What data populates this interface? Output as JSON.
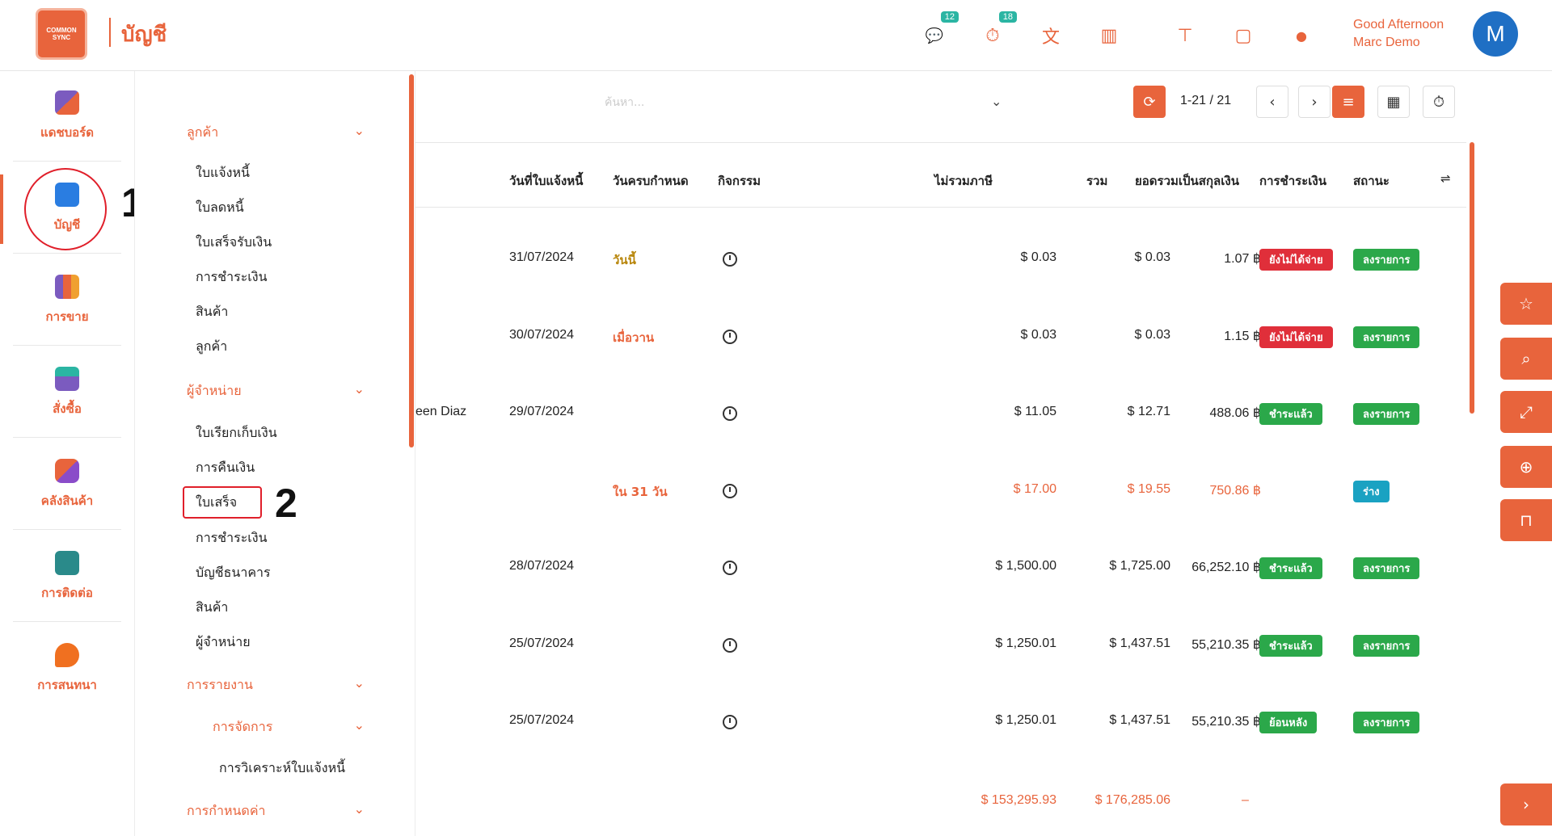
{
  "app": {
    "logo_text": "COMMON SYNC",
    "title": "บัญชี",
    "greeting": "Good Afternoon",
    "user_name": "Marc Demo",
    "avatar_letter": "M"
  },
  "topbar": {
    "icons": [
      {
        "name": "chat-icon",
        "glyph": "💬",
        "badge": "12"
      },
      {
        "name": "timer-icon",
        "glyph": "⏱",
        "badge": "18"
      },
      {
        "name": "translate-icon",
        "glyph": "文"
      },
      {
        "name": "building-icon",
        "glyph": "▥"
      },
      {
        "name": "signpost-icon",
        "glyph": "⊤"
      },
      {
        "name": "note-icon",
        "glyph": "▢"
      },
      {
        "name": "lightbulb-icon",
        "glyph": "●"
      }
    ]
  },
  "leftnav": {
    "items": [
      {
        "label": "แดชบอร์ด",
        "color": "#7b5bbf"
      },
      {
        "label": "บัญชี",
        "color": "#2a7de1"
      },
      {
        "label": "การขาย",
        "color": "#e8643c"
      },
      {
        "label": "สั่งซื้อ",
        "color": "#2bb5a3"
      },
      {
        "label": "คลังสินค้า",
        "color": "#8a4cc9"
      },
      {
        "label": "การติดต่อ",
        "color": "#2a8a8a"
      },
      {
        "label": "การสนทนา",
        "color": "#f07020"
      }
    ],
    "step1": "1"
  },
  "submenu": {
    "sections": [
      {
        "label": "ลูกค้า"
      },
      {
        "label": "ผู้จำหน่าย"
      },
      {
        "label": "การรายงาน"
      },
      {
        "label": "การจัดการ"
      },
      {
        "label": "การกำหนดค่า"
      }
    ],
    "customer_items": [
      "ใบแจ้งหนี้",
      "ใบลดหนี้",
      "ใบเสร็จรับเงิน",
      "การชำระเงิน",
      "สินค้า",
      "ลูกค้า"
    ],
    "vendor_items": [
      "ใบเรียกเก็บเงิน",
      "การคืนเงิน",
      "ใบเสร็จ",
      "การชำระเงิน",
      "บัญชีธนาคาร",
      "สินค้า",
      "ผู้จำหน่าย"
    ],
    "management_item": "การวิเคราะห์ใบแจ้งหนี้",
    "step2": "2"
  },
  "toolbar": {
    "search_placeholder": "ค้นหา...",
    "pager": "1-21 / 21"
  },
  "table": {
    "headers": [
      "วันที่ใบแจ้งหนี้",
      "วันครบกำหนด",
      "กิจกรรม",
      "ไม่รวมภาษี",
      "รวม",
      "ยอดรวมเป็นสกุลเงิน",
      "การชำระเงิน",
      "สถานะ"
    ],
    "rows": [
      {
        "partner": "",
        "date": "31/07/2024",
        "due": "วันนี้",
        "due_style": "olive",
        "untaxed": "$ 0.03",
        "total": "$ 0.03",
        "currency_total": "1.07 ฿",
        "payment": "ยังไม่ได้จ่าย",
        "payment_style": "red",
        "status": "ลงรายการ",
        "status_style": "green",
        "orange": false
      },
      {
        "partner": "",
        "date": "30/07/2024",
        "due": "เมื่อวาน",
        "due_style": "red",
        "untaxed": "$ 0.03",
        "total": "$ 0.03",
        "currency_total": "1.15 ฿",
        "payment": "ยังไม่ได้จ่าย",
        "payment_style": "red",
        "status": "ลงรายการ",
        "status_style": "green",
        "orange": false
      },
      {
        "partner": "een Diaz",
        "date": "29/07/2024",
        "due": "",
        "due_style": "",
        "untaxed": "$ 11.05",
        "total": "$ 12.71",
        "currency_total": "488.06 ฿",
        "payment": "ชำระแล้ว",
        "payment_style": "green",
        "status": "ลงรายการ",
        "status_style": "green",
        "orange": false
      },
      {
        "partner": "",
        "date": "",
        "due": "ใน 31 วัน",
        "due_style": "red",
        "untaxed": "$ 17.00",
        "total": "$ 19.55",
        "currency_total": "750.86 ฿",
        "payment": "",
        "payment_style": "",
        "status": "ร่าง",
        "status_style": "teal",
        "orange": true
      },
      {
        "partner": "",
        "date": "28/07/2024",
        "due": "",
        "due_style": "",
        "untaxed": "$ 1,500.00",
        "total": "$ 1,725.00",
        "currency_total": "66,252.10 ฿",
        "payment": "ชำระแล้ว",
        "payment_style": "green",
        "status": "ลงรายการ",
        "status_style": "green",
        "orange": false
      },
      {
        "partner": "",
        "date": "25/07/2024",
        "due": "",
        "due_style": "",
        "untaxed": "$ 1,250.01",
        "total": "$ 1,437.51",
        "currency_total": "55,210.35 ฿",
        "payment": "ชำระแล้ว",
        "payment_style": "green",
        "status": "ลงรายการ",
        "status_style": "green",
        "orange": false
      },
      {
        "partner": "",
        "date": "25/07/2024",
        "due": "",
        "due_style": "",
        "untaxed": "$ 1,250.01",
        "total": "$ 1,437.51",
        "currency_total": "55,210.35 ฿",
        "payment": "ย้อนหลัง",
        "payment_style": "green",
        "status": "ลงรายการ",
        "status_style": "green",
        "orange": false
      }
    ],
    "footer": {
      "untaxed": "$ 153,295.93",
      "total": "$ 176,285.06",
      "currency_total": "–"
    }
  },
  "side_buttons": [
    {
      "name": "favorite-star-icon",
      "glyph": "☆"
    },
    {
      "name": "search-icon",
      "glyph": "⌕"
    },
    {
      "name": "expand-icon",
      "glyph": "⤢"
    },
    {
      "name": "zoom-in-icon",
      "glyph": "⊕"
    },
    {
      "name": "bookmark-icon",
      "glyph": "⊓"
    },
    {
      "name": "chevron-right-icon",
      "glyph": "›"
    }
  ]
}
